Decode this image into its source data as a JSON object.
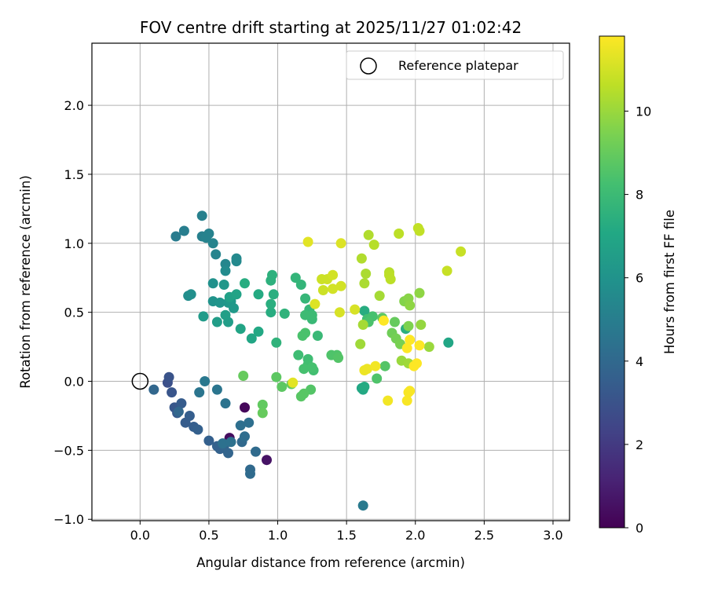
{
  "chart_data": {
    "type": "scatter",
    "title": "FOV centre drift starting at 2025/11/27 01:02:42",
    "xlabel": "Angular distance from reference (arcmin)",
    "ylabel": "Rotation from reference (arcmin)",
    "xlim": [
      -0.35,
      3.12
    ],
    "ylim": [
      -1.01,
      2.45
    ],
    "x_ticks": [
      0.0,
      0.5,
      1.0,
      1.5,
      2.0,
      2.5,
      3.0
    ],
    "x_tick_labels": [
      "0.0",
      "0.5",
      "1.0",
      "1.5",
      "2.0",
      "2.5",
      "3.0"
    ],
    "y_ticks": [
      -1.0,
      -0.5,
      0.0,
      0.5,
      1.0,
      1.5,
      2.0
    ],
    "y_tick_labels": [
      "−1.0",
      "−0.5",
      "0.0",
      "0.5",
      "1.0",
      "1.5",
      "2.0"
    ],
    "grid": true,
    "legend": {
      "position": "top-right",
      "label": "Reference platepar"
    },
    "reference_point": {
      "x": 0.0,
      "y": 0.0
    },
    "colorbar": {
      "label": "Hours from first FF file",
      "colormap": "viridis",
      "range": [
        0,
        11.8
      ],
      "ticks": [
        0,
        2,
        4,
        6,
        8,
        10
      ],
      "tick_labels": [
        "0",
        "2",
        "4",
        "6",
        "8",
        "10"
      ]
    },
    "points": [
      [
        0.76,
        -0.19,
        0.2
      ],
      [
        0.65,
        -0.41,
        0.4
      ],
      [
        0.92,
        -0.57,
        0.6
      ],
      [
        0.2,
        -0.01,
        2.9
      ],
      [
        0.21,
        0.03,
        3.0
      ],
      [
        0.23,
        -0.08,
        3.1
      ],
      [
        0.25,
        -0.19,
        3.2
      ],
      [
        0.27,
        -0.23,
        3.3
      ],
      [
        0.3,
        -0.16,
        3.4
      ],
      [
        0.33,
        -0.3,
        3.4
      ],
      [
        0.36,
        -0.25,
        3.5
      ],
      [
        0.39,
        -0.33,
        3.5
      ],
      [
        0.42,
        -0.35,
        3.6
      ],
      [
        0.5,
        -0.43,
        3.6
      ],
      [
        0.56,
        -0.47,
        3.7
      ],
      [
        0.58,
        -0.49,
        3.7
      ],
      [
        0.61,
        -0.47,
        3.8
      ],
      [
        0.64,
        -0.52,
        3.8
      ],
      [
        0.1,
        -0.06,
        3.9
      ],
      [
        0.28,
        -0.22,
        3.9
      ],
      [
        0.74,
        -0.44,
        4.0
      ],
      [
        0.8,
        -0.64,
        4.0
      ],
      [
        0.8,
        -0.67,
        4.1
      ],
      [
        0.84,
        -0.51,
        4.1
      ],
      [
        0.76,
        -0.4,
        4.2
      ],
      [
        0.73,
        -0.32,
        4.3
      ],
      [
        0.79,
        -0.3,
        4.3
      ],
      [
        0.6,
        -0.45,
        4.4
      ],
      [
        0.66,
        -0.44,
        4.4
      ],
      [
        0.62,
        -0.16,
        4.5
      ],
      [
        0.56,
        -0.06,
        4.6
      ],
      [
        0.43,
        -0.08,
        4.6
      ],
      [
        0.47,
        0.0,
        4.7
      ],
      [
        1.62,
        -0.9,
        4.8
      ],
      [
        0.26,
        1.05,
        4.9
      ],
      [
        0.32,
        1.09,
        5.0
      ],
      [
        0.45,
        1.2,
        5.1
      ],
      [
        0.45,
        1.05,
        5.1
      ],
      [
        0.48,
        1.04,
        5.2
      ],
      [
        0.5,
        1.07,
        5.2
      ],
      [
        0.53,
        1.0,
        5.3
      ],
      [
        0.55,
        0.92,
        5.3
      ],
      [
        0.62,
        0.85,
        5.4
      ],
      [
        0.7,
        0.87,
        5.5
      ],
      [
        0.7,
        0.89,
        5.5
      ],
      [
        0.62,
        0.8,
        5.6
      ],
      [
        0.35,
        0.62,
        5.7
      ],
      [
        0.37,
        0.63,
        5.8
      ],
      [
        0.53,
        0.71,
        5.9
      ],
      [
        0.53,
        0.58,
        6.0
      ],
      [
        0.58,
        0.57,
        6.1
      ],
      [
        0.61,
        0.7,
        6.2
      ],
      [
        0.64,
        0.57,
        6.2
      ],
      [
        0.66,
        0.58,
        6.3
      ],
      [
        0.68,
        0.53,
        6.3
      ],
      [
        0.46,
        0.47,
        6.4
      ],
      [
        0.56,
        0.43,
        6.5
      ],
      [
        0.64,
        0.43,
        6.5
      ],
      [
        0.62,
        0.48,
        6.6
      ],
      [
        0.65,
        0.61,
        6.7
      ],
      [
        0.7,
        0.63,
        6.8
      ],
      [
        0.73,
        0.38,
        6.9
      ],
      [
        0.81,
        0.31,
        7.0
      ],
      [
        0.86,
        0.36,
        7.1
      ],
      [
        0.86,
        0.63,
        7.2
      ],
      [
        0.76,
        0.71,
        7.3
      ],
      [
        0.95,
        0.5,
        7.3
      ],
      [
        0.95,
        0.56,
        7.4
      ],
      [
        0.97,
        0.63,
        7.4
      ],
      [
        0.95,
        0.73,
        7.5
      ],
      [
        0.96,
        0.77,
        7.5
      ],
      [
        0.99,
        0.28,
        7.6
      ],
      [
        1.05,
        0.49,
        7.6
      ],
      [
        1.13,
        0.75,
        7.7
      ],
      [
        1.17,
        0.7,
        7.7
      ],
      [
        1.2,
        0.6,
        7.8
      ],
      [
        1.23,
        0.52,
        7.8
      ],
      [
        1.25,
        0.45,
        7.9
      ],
      [
        1.29,
        0.33,
        7.9
      ],
      [
        1.25,
        0.48,
        8.0
      ],
      [
        1.2,
        0.48,
        8.0
      ],
      [
        1.22,
        0.16,
        8.1
      ],
      [
        1.15,
        0.19,
        8.1
      ],
      [
        1.22,
        0.12,
        8.2
      ],
      [
        1.26,
        0.08,
        8.2
      ],
      [
        1.19,
        0.09,
        8.3
      ],
      [
        1.25,
        0.1,
        8.3
      ],
      [
        1.2,
        0.35,
        8.4
      ],
      [
        1.18,
        0.33,
        8.4
      ],
      [
        1.39,
        0.19,
        8.5
      ],
      [
        1.43,
        0.19,
        8.5
      ],
      [
        1.44,
        0.17,
        8.6
      ],
      [
        1.24,
        -0.06,
        8.6
      ],
      [
        1.19,
        -0.09,
        8.7
      ],
      [
        1.17,
        -0.11,
        8.7
      ],
      [
        1.03,
        -0.04,
        8.8
      ],
      [
        0.99,
        0.03,
        8.8
      ],
      [
        1.1,
        -0.02,
        8.9
      ],
      [
        0.89,
        -0.17,
        8.9
      ],
      [
        0.89,
        -0.23,
        9.0
      ],
      [
        0.75,
        0.04,
        9.0
      ],
      [
        1.61,
        -0.05,
        7.0
      ],
      [
        1.62,
        -0.06,
        7.1
      ],
      [
        1.63,
        -0.04,
        7.2
      ],
      [
        1.63,
        0.51,
        7.3
      ],
      [
        1.93,
        0.38,
        7.4
      ],
      [
        2.24,
        0.28,
        7.0
      ],
      [
        1.65,
        0.45,
        8.2
      ],
      [
        1.69,
        0.47,
        8.3
      ],
      [
        1.66,
        0.43,
        8.4
      ],
      [
        1.72,
        0.02,
        8.5
      ],
      [
        1.78,
        0.11,
        8.6
      ],
      [
        1.76,
        0.46,
        8.8
      ],
      [
        1.85,
        0.43,
        9.0
      ],
      [
        1.83,
        0.35,
        9.2
      ],
      [
        1.86,
        0.31,
        9.3
      ],
      [
        1.89,
        0.27,
        9.4
      ],
      [
        1.95,
        0.4,
        9.5
      ],
      [
        1.92,
        0.58,
        9.6
      ],
      [
        1.95,
        0.6,
        9.7
      ],
      [
        1.96,
        0.55,
        9.8
      ],
      [
        2.03,
        0.64,
        9.8
      ],
      [
        2.04,
        0.41,
        9.9
      ],
      [
        2.1,
        0.25,
        10.0
      ],
      [
        1.9,
        0.15,
        10.0
      ],
      [
        1.95,
        0.13,
        10.1
      ],
      [
        1.6,
        0.27,
        10.1
      ],
      [
        1.62,
        0.41,
        10.2
      ],
      [
        1.74,
        0.62,
        10.2
      ],
      [
        1.63,
        0.71,
        10.3
      ],
      [
        1.64,
        0.78,
        10.3
      ],
      [
        1.61,
        0.89,
        10.4
      ],
      [
        1.66,
        1.06,
        10.4
      ],
      [
        1.7,
        0.99,
        10.5
      ],
      [
        1.81,
        0.79,
        10.5
      ],
      [
        1.81,
        0.77,
        10.6
      ],
      [
        1.82,
        0.74,
        10.6
      ],
      [
        1.88,
        1.07,
        10.6
      ],
      [
        2.02,
        1.11,
        10.7
      ],
      [
        2.03,
        1.09,
        10.7
      ],
      [
        2.23,
        0.8,
        10.8
      ],
      [
        2.33,
        0.94,
        10.8
      ],
      [
        1.33,
        0.66,
        10.9
      ],
      [
        1.32,
        0.74,
        10.9
      ],
      [
        1.36,
        0.74,
        10.9
      ],
      [
        1.4,
        0.77,
        11.0
      ],
      [
        1.4,
        0.67,
        11.0
      ],
      [
        1.46,
        0.69,
        11.0
      ],
      [
        1.45,
        0.5,
        11.1
      ],
      [
        1.56,
        0.52,
        11.1
      ],
      [
        1.27,
        0.56,
        11.2
      ],
      [
        1.46,
        1.0,
        11.2
      ],
      [
        1.22,
        1.01,
        11.3
      ],
      [
        1.11,
        -0.01,
        11.3
      ],
      [
        1.63,
        0.08,
        11.5
      ],
      [
        1.65,
        0.09,
        11.5
      ],
      [
        1.71,
        0.11,
        11.6
      ],
      [
        1.8,
        -0.14,
        11.6
      ],
      [
        1.94,
        -0.14,
        11.7
      ],
      [
        1.95,
        -0.08,
        11.7
      ],
      [
        1.96,
        -0.07,
        11.7
      ],
      [
        1.99,
        0.11,
        11.8
      ],
      [
        2.01,
        0.13,
        11.8
      ],
      [
        1.94,
        0.24,
        11.8
      ],
      [
        1.96,
        0.3,
        11.8
      ],
      [
        2.03,
        0.26,
        11.8
      ],
      [
        1.77,
        0.44,
        11.8
      ]
    ]
  }
}
